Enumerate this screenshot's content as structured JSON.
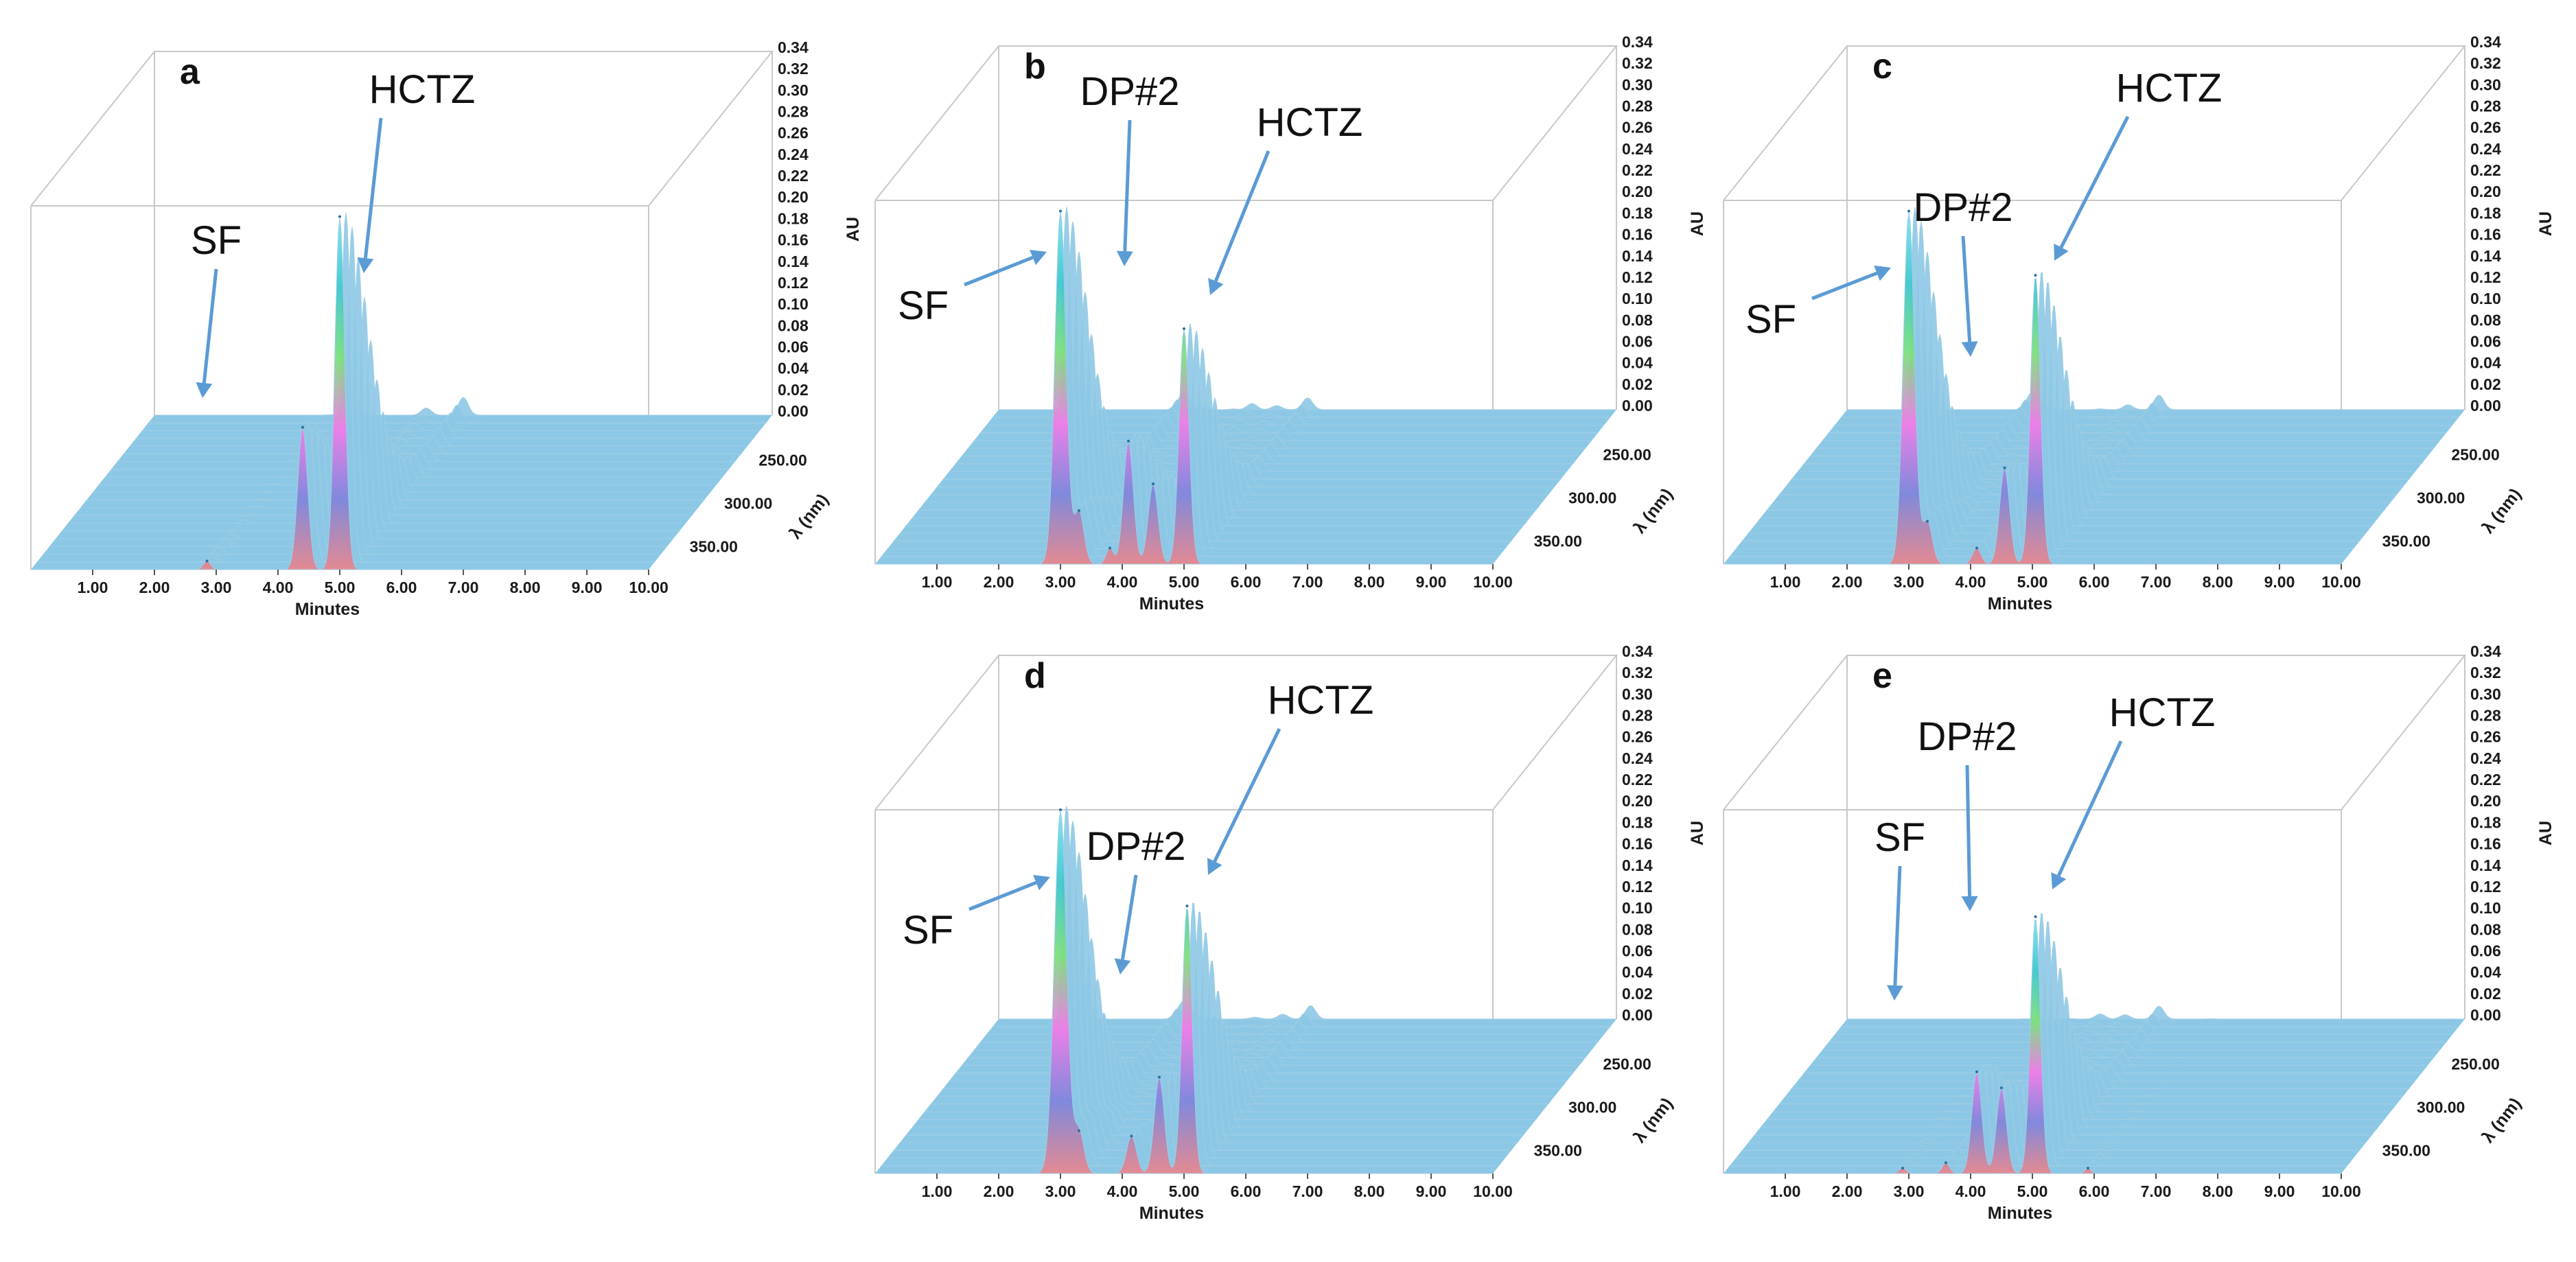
{
  "colors": {
    "floor": "#8cc8e6",
    "floor_stripe": "#a9d6ec",
    "ribbon_stroke": "#9fcce3",
    "arrow": "#5b9bd5",
    "bands": [
      "#e8868d",
      "#7f86dc",
      "#f07ce8",
      "#7de07d",
      "#3ec7cf",
      "#78e4ee"
    ]
  },
  "chart_data": [
    {
      "panel": "a",
      "type": "3d-chromatogram",
      "xlabel": "Minutes",
      "x_ticks": [
        "1.00",
        "2.00",
        "3.00",
        "4.00",
        "5.00",
        "6.00",
        "7.00",
        "8.00",
        "9.00",
        "10.00"
      ],
      "xlim": [
        0,
        10
      ],
      "ylabel": "AU",
      "y_ticks": [
        "0.00",
        "0.02",
        "0.04",
        "0.06",
        "0.08",
        "0.10",
        "0.12",
        "0.14",
        "0.16",
        "0.18",
        "0.20",
        "0.22",
        "0.24",
        "0.26",
        "0.28",
        "0.30",
        "0.32",
        "0.34"
      ],
      "ylim": [
        0,
        0.34
      ],
      "zlabel": "λ (nm)",
      "z_ticks": [
        "250.00",
        "300.00",
        "350.00"
      ],
      "peaks": [
        {
          "name": "SF",
          "rt": 2.85,
          "height": 0.008,
          "width": 0.06
        },
        {
          "name": "",
          "rt": 4.4,
          "height": 0.133,
          "width": 0.08
        },
        {
          "name": "HCTZ",
          "rt": 5.0,
          "height": 0.33,
          "width": 0.08
        }
      ],
      "annotations": [
        {
          "label": "SF",
          "target_rt": 2.85,
          "target_au": 0.005
        },
        {
          "label": "HCTZ",
          "target_rt": 5.1,
          "target_au": 0.13
        }
      ]
    },
    {
      "panel": "b",
      "type": "3d-chromatogram",
      "xlabel": "Minutes",
      "x_ticks": [
        "1.00",
        "2.00",
        "3.00",
        "4.00",
        "5.00",
        "6.00",
        "7.00",
        "8.00",
        "9.00",
        "10.00"
      ],
      "xlim": [
        0,
        10
      ],
      "ylabel": "AU",
      "y_ticks": [
        "0.00",
        "0.02",
        "0.04",
        "0.06",
        "0.08",
        "0.10",
        "0.12",
        "0.14",
        "0.16",
        "0.18",
        "0.20",
        "0.22",
        "0.24",
        "0.26",
        "0.28",
        "0.30",
        "0.32",
        "0.34"
      ],
      "ylim": [
        0,
        0.34
      ],
      "zlabel": "λ (nm)",
      "z_ticks": [
        "250.00",
        "300.00",
        "350.00"
      ],
      "peaks": [
        {
          "name": "SF",
          "rt": 3.0,
          "height": 0.33,
          "width": 0.09
        },
        {
          "name": "",
          "rt": 3.3,
          "height": 0.05,
          "width": 0.08
        },
        {
          "name": "",
          "rt": 3.8,
          "height": 0.015,
          "width": 0.06
        },
        {
          "name": "DP#2",
          "rt": 4.1,
          "height": 0.115,
          "width": 0.08
        },
        {
          "name": "",
          "rt": 4.5,
          "height": 0.075,
          "width": 0.08
        },
        {
          "name": "HCTZ",
          "rt": 5.0,
          "height": 0.22,
          "width": 0.08
        }
      ],
      "annotations": [
        {
          "label": "SF",
          "target_rt": 2.95,
          "target_au": 0.13
        },
        {
          "label": "DP#2",
          "target_rt": 4.05,
          "target_au": 0.115
        },
        {
          "label": "HCTZ",
          "target_rt": 5.05,
          "target_au": 0.09
        }
      ]
    },
    {
      "panel": "c",
      "type": "3d-chromatogram",
      "xlabel": "Minutes",
      "x_ticks": [
        "1.00",
        "2.00",
        "3.00",
        "4.00",
        "5.00",
        "6.00",
        "7.00",
        "8.00",
        "9.00",
        "10.00"
      ],
      "xlim": [
        0,
        10
      ],
      "ylabel": "AU",
      "y_ticks": [
        "0.00",
        "0.02",
        "0.04",
        "0.06",
        "0.08",
        "0.10",
        "0.12",
        "0.14",
        "0.16",
        "0.18",
        "0.20",
        "0.22",
        "0.24",
        "0.26",
        "0.28",
        "0.30",
        "0.32",
        "0.34"
      ],
      "ylim": [
        0,
        0.34
      ],
      "zlabel": "λ (nm)",
      "z_ticks": [
        "250.00",
        "300.00",
        "350.00"
      ],
      "peaks": [
        {
          "name": "SF",
          "rt": 3.0,
          "height": 0.33,
          "width": 0.09
        },
        {
          "name": "",
          "rt": 3.3,
          "height": 0.04,
          "width": 0.08
        },
        {
          "name": "DP#2",
          "rt": 4.1,
          "height": 0.015,
          "width": 0.07
        },
        {
          "name": "",
          "rt": 4.55,
          "height": 0.09,
          "width": 0.08
        },
        {
          "name": "HCTZ",
          "rt": 5.05,
          "height": 0.27,
          "width": 0.08
        }
      ],
      "annotations": [
        {
          "label": "SF",
          "target_rt": 2.95,
          "target_au": 0.12
        },
        {
          "label": "DP#2",
          "target_rt": 4.1,
          "target_au": 0.03
        },
        {
          "label": "HCTZ",
          "target_rt": 5.1,
          "target_au": 0.12
        }
      ]
    },
    {
      "panel": "d",
      "type": "3d-chromatogram",
      "xlabel": "Minutes",
      "x_ticks": [
        "1.00",
        "2.00",
        "3.00",
        "4.00",
        "5.00",
        "6.00",
        "7.00",
        "8.00",
        "9.00",
        "10.00"
      ],
      "xlim": [
        0,
        10
      ],
      "ylabel": "AU",
      "y_ticks": [
        "0.00",
        "0.02",
        "0.04",
        "0.06",
        "0.08",
        "0.10",
        "0.12",
        "0.14",
        "0.16",
        "0.18",
        "0.20",
        "0.22",
        "0.24",
        "0.26",
        "0.28",
        "0.30",
        "0.32",
        "0.34"
      ],
      "ylim": [
        0,
        0.34
      ],
      "zlabel": "λ (nm)",
      "z_ticks": [
        "250.00",
        "300.00",
        "350.00"
      ],
      "peaks": [
        {
          "name": "SF",
          "rt": 3.0,
          "height": 0.34,
          "width": 0.1
        },
        {
          "name": "",
          "rt": 3.3,
          "height": 0.04,
          "width": 0.08
        },
        {
          "name": "DP#2",
          "rt": 4.15,
          "height": 0.035,
          "width": 0.08
        },
        {
          "name": "",
          "rt": 4.6,
          "height": 0.09,
          "width": 0.08
        },
        {
          "name": "HCTZ",
          "rt": 5.05,
          "height": 0.25,
          "width": 0.08
        }
      ],
      "annotations": [
        {
          "label": "SF",
          "target_rt": 2.95,
          "target_au": 0.12
        },
        {
          "label": "DP#2",
          "target_rt": 4.1,
          "target_au": 0.03
        },
        {
          "label": "HCTZ",
          "target_rt": 5.1,
          "target_au": 0.13
        }
      ]
    },
    {
      "panel": "e",
      "type": "3d-chromatogram",
      "xlabel": "Minutes",
      "x_ticks": [
        "1.00",
        "2.00",
        "3.00",
        "4.00",
        "5.00",
        "6.00",
        "7.00",
        "8.00",
        "9.00",
        "10.00"
      ],
      "xlim": [
        0,
        10
      ],
      "ylabel": "AU",
      "y_ticks": [
        "0.00",
        "0.02",
        "0.04",
        "0.06",
        "0.08",
        "0.10",
        "0.12",
        "0.14",
        "0.16",
        "0.18",
        "0.20",
        "0.22",
        "0.24",
        "0.26",
        "0.28",
        "0.30",
        "0.32",
        "0.34"
      ],
      "ylim": [
        0,
        0.34
      ],
      "zlabel": "λ (nm)",
      "z_ticks": [
        "250.00",
        "300.00",
        "350.00"
      ],
      "peaks": [
        {
          "name": "SF",
          "rt": 2.9,
          "height": 0.005,
          "width": 0.06
        },
        {
          "name": "",
          "rt": 3.6,
          "height": 0.01,
          "width": 0.06
        },
        {
          "name": "DP#2",
          "rt": 4.1,
          "height": 0.095,
          "width": 0.08
        },
        {
          "name": "",
          "rt": 4.5,
          "height": 0.08,
          "width": 0.08
        },
        {
          "name": "HCTZ",
          "rt": 5.05,
          "height": 0.24,
          "width": 0.08
        },
        {
          "name": "",
          "rt": 5.9,
          "height": 0.005,
          "width": 0.05
        }
      ],
      "annotations": [
        {
          "label": "SF",
          "target_rt": 2.9,
          "target_au": 0.005
        },
        {
          "label": "DP#2",
          "target_rt": 4.05,
          "target_au": 0.09
        },
        {
          "label": "HCTZ",
          "target_rt": 5.1,
          "target_au": 0.12
        }
      ]
    }
  ]
}
